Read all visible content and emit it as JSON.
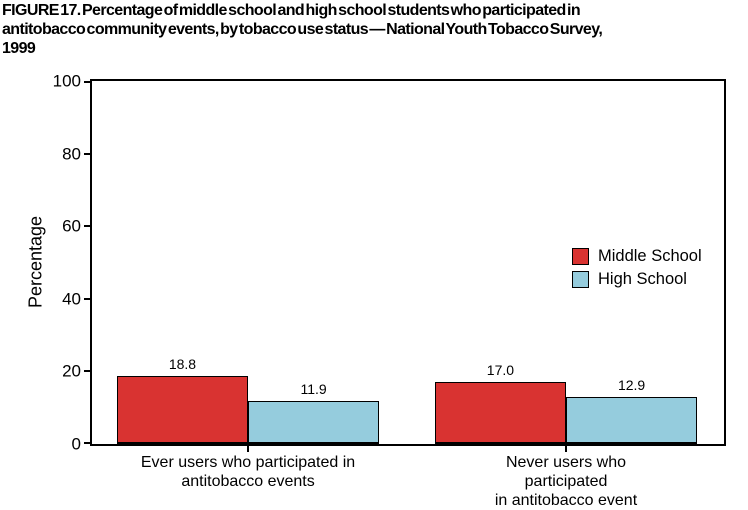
{
  "title": {
    "lines": [
      "FIGURE 17. Percentage of middle school and high school students who participated in",
      "antitobacco community events, by tobacco use status — National Youth Tobacco Survey,",
      "1999"
    ]
  },
  "chart_data": {
    "type": "bar",
    "title": "FIGURE 17. Percentage of middle school and high school students who participated in antitobacco community events, by tobacco use status — National Youth Tobacco Survey, 1999",
    "categories": [
      "Ever users who participated in\nantitobacco events",
      "Never users who participated\nin antitobacco event"
    ],
    "series": [
      {
        "name": "Middle School",
        "color": "#D93331",
        "values": [
          18.8,
          17.0
        ]
      },
      {
        "name": "High School",
        "color": "#95CCDD",
        "values": [
          11.9,
          12.9
        ]
      }
    ],
    "xlabel": "",
    "ylabel": "Percentage",
    "ylim": [
      0,
      100
    ],
    "yticks": [
      0,
      20,
      40,
      60,
      80,
      100
    ],
    "grid": false,
    "legend_position": "right-middle",
    "value_label_decimals": 1
  },
  "colors": {
    "middle_school": "#D93331",
    "high_school": "#95CCDD",
    "axis": "#000000",
    "background": "#FFFFFF"
  }
}
